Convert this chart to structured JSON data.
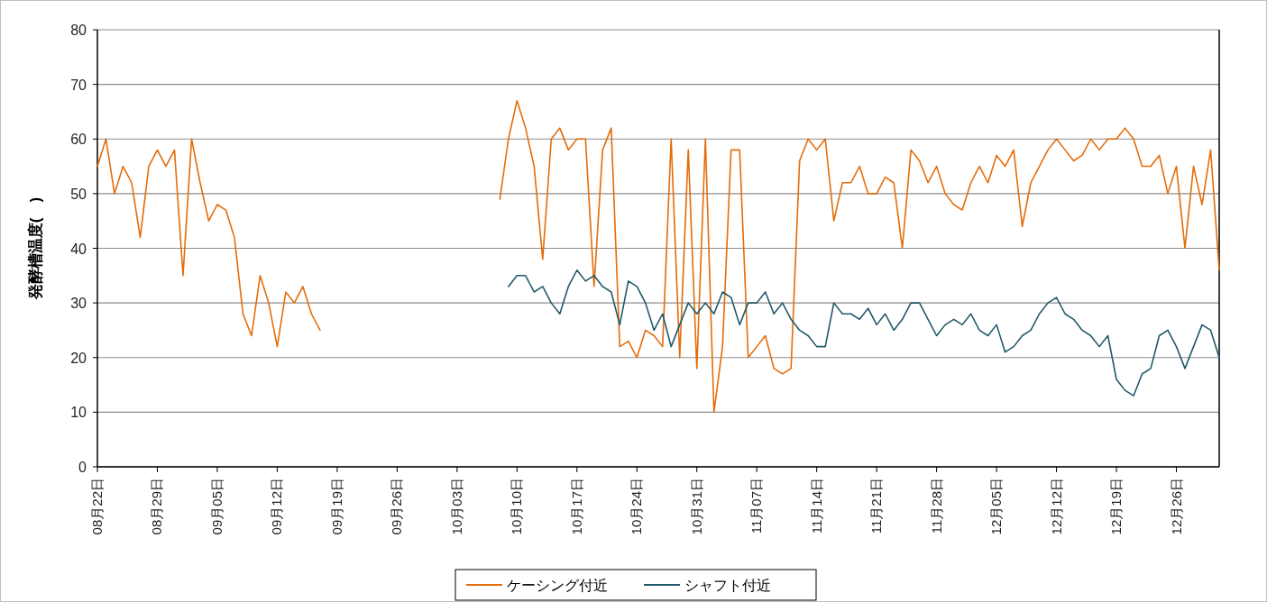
{
  "chart_data": {
    "type": "line",
    "ylabel": "発酵槽温度(　)",
    "ylim": [
      0,
      80
    ],
    "yticks": [
      0,
      10,
      20,
      30,
      40,
      50,
      60,
      70,
      80
    ],
    "xlim": [
      "--08-22",
      "--12-31"
    ],
    "xticks": [
      {
        "value": "--08-22",
        "label": "08月22日"
      },
      {
        "value": "--08-29",
        "label": "08月29日"
      },
      {
        "value": "--09-05",
        "label": "09月05日"
      },
      {
        "value": "--09-12",
        "label": "09月12日"
      },
      {
        "value": "--09-19",
        "label": "09月19日"
      },
      {
        "value": "--09-26",
        "label": "09月26日"
      },
      {
        "value": "--10-03",
        "label": "10月03日"
      },
      {
        "value": "--10-10",
        "label": "10月10日"
      },
      {
        "value": "--10-17",
        "label": "10月17日"
      },
      {
        "value": "--10-24",
        "label": "10月24日"
      },
      {
        "value": "--10-31",
        "label": "10月31日"
      },
      {
        "value": "--11-07",
        "label": "11月07日"
      },
      {
        "value": "--11-14",
        "label": "11月14日"
      },
      {
        "value": "--11-21",
        "label": "11月21日"
      },
      {
        "value": "--11-28",
        "label": "11月28日"
      },
      {
        "value": "--12-05",
        "label": "12月05日"
      },
      {
        "value": "--12-12",
        "label": "12月12日"
      },
      {
        "value": "--12-19",
        "label": "12月19日"
      },
      {
        "value": "--12-26",
        "label": "12月26日"
      }
    ],
    "grid": "y",
    "legend": "bottom",
    "series": [
      {
        "name": "ケーシング付近",
        "color": "#e46c0a",
        "x": [
          "--08-22",
          "--08-23",
          "--08-24",
          "--08-25",
          "--08-26",
          "--08-27",
          "--08-28",
          "--08-29",
          "--08-30",
          "--08-31",
          "--09-01",
          "--09-02",
          "--09-03",
          "--09-04",
          "--09-05",
          "--09-06",
          "--09-07",
          "--09-08",
          "--09-09",
          "--09-10",
          "--09-11",
          "--09-12",
          "--09-13",
          "--09-14",
          "--09-15",
          "--09-16",
          "--09-17",
          "--09-18",
          "--10-08",
          "--10-09",
          "--10-10",
          "--10-11",
          "--10-12",
          "--10-13",
          "--10-14",
          "--10-15",
          "--10-16",
          "--10-17",
          "--10-18",
          "--10-19",
          "--10-20",
          "--10-21",
          "--10-22",
          "--10-23",
          "--10-24",
          "--10-25",
          "--10-26",
          "--10-27",
          "--10-28",
          "--10-29",
          "--10-30",
          "--10-31",
          "--11-01",
          "--11-02",
          "--11-03",
          "--11-04",
          "--11-05",
          "--11-06",
          "--11-07",
          "--11-08",
          "--11-09",
          "--11-10",
          "--11-11",
          "--11-12",
          "--11-13",
          "--11-14",
          "--11-15",
          "--11-16",
          "--11-17",
          "--11-18",
          "--11-19",
          "--11-20",
          "--11-21",
          "--11-22",
          "--11-23",
          "--11-24",
          "--11-25",
          "--11-26",
          "--11-27",
          "--11-28",
          "--11-29",
          "--11-30",
          "--12-01",
          "--12-02",
          "--12-03",
          "--12-04",
          "--12-05",
          "--12-06",
          "--12-07",
          "--12-08",
          "--12-09",
          "--12-10",
          "--12-11",
          "--12-12",
          "--12-13",
          "--12-14",
          "--12-15",
          "--12-16",
          "--12-17",
          "--12-18",
          "--12-19",
          "--12-20",
          "--12-21",
          "--12-22",
          "--12-23",
          "--12-24",
          "--12-25",
          "--12-26",
          "--12-27",
          "--12-28",
          "--12-29",
          "--12-30",
          "--12-31"
        ],
        "values": [
          55,
          60,
          50,
          55,
          52,
          42,
          55,
          58,
          55,
          58,
          35,
          60,
          52,
          45,
          48,
          47,
          42,
          28,
          24,
          35,
          30,
          22,
          32,
          30,
          33,
          28,
          25,
          null,
          49,
          60,
          67,
          62,
          55,
          38,
          60,
          62,
          58,
          60,
          60,
          33,
          58,
          62,
          22,
          23,
          20,
          25,
          24,
          22,
          60,
          20,
          58,
          18,
          60,
          10,
          22,
          58,
          58,
          20,
          22,
          24,
          18,
          17,
          18,
          56,
          60,
          58,
          60,
          45,
          52,
          52,
          55,
          50,
          50,
          53,
          52,
          40,
          58,
          56,
          52,
          55,
          50,
          48,
          47,
          52,
          55,
          52,
          57,
          55,
          58,
          44,
          52,
          55,
          58,
          60,
          58,
          56,
          57,
          60,
          58,
          60,
          60,
          62,
          60,
          55,
          55,
          57,
          50,
          55,
          40,
          55,
          48,
          58,
          36
        ]
      },
      {
        "name": "シャフト付近",
        "color": "#215968",
        "x": [
          "--10-09",
          "--10-10",
          "--10-11",
          "--10-12",
          "--10-13",
          "--10-14",
          "--10-15",
          "--10-16",
          "--10-17",
          "--10-18",
          "--10-19",
          "--10-20",
          "--10-21",
          "--10-22",
          "--10-23",
          "--10-24",
          "--10-25",
          "--10-26",
          "--10-27",
          "--10-28",
          "--10-29",
          "--10-30",
          "--10-31",
          "--11-01",
          "--11-02",
          "--11-03",
          "--11-04",
          "--11-05",
          "--11-06",
          "--11-07",
          "--11-08",
          "--11-09",
          "--11-10",
          "--11-11",
          "--11-12",
          "--11-13",
          "--11-14",
          "--11-15",
          "--11-16",
          "--11-17",
          "--11-18",
          "--11-19",
          "--11-20",
          "--11-21",
          "--11-22",
          "--11-23",
          "--11-24",
          "--11-25",
          "--11-26",
          "--11-27",
          "--11-28",
          "--11-29",
          "--11-30",
          "--12-01",
          "--12-02",
          "--12-03",
          "--12-04",
          "--12-05",
          "--12-06",
          "--12-07",
          "--12-08",
          "--12-09",
          "--12-10",
          "--12-11",
          "--12-12",
          "--12-13",
          "--12-14",
          "--12-15",
          "--12-16",
          "--12-17",
          "--12-18",
          "--12-19",
          "--12-20",
          "--12-21",
          "--12-22",
          "--12-23",
          "--12-24",
          "--12-25",
          "--12-26",
          "--12-27",
          "--12-28",
          "--12-29",
          "--12-30",
          "--12-31"
        ],
        "values": [
          33,
          35,
          35,
          32,
          33,
          30,
          28,
          33,
          36,
          34,
          35,
          33,
          32,
          26,
          34,
          33,
          30,
          25,
          28,
          22,
          26,
          30,
          28,
          30,
          28,
          32,
          31,
          26,
          30,
          30,
          32,
          28,
          30,
          27,
          25,
          24,
          22,
          22,
          30,
          28,
          28,
          27,
          29,
          26,
          28,
          25,
          27,
          30,
          30,
          27,
          24,
          26,
          27,
          26,
          28,
          25,
          24,
          26,
          21,
          22,
          24,
          25,
          28,
          30,
          31,
          28,
          27,
          25,
          24,
          22,
          24,
          16,
          14,
          13,
          17,
          18,
          24,
          25,
          22,
          18,
          22,
          26,
          25,
          20
        ]
      }
    ]
  }
}
